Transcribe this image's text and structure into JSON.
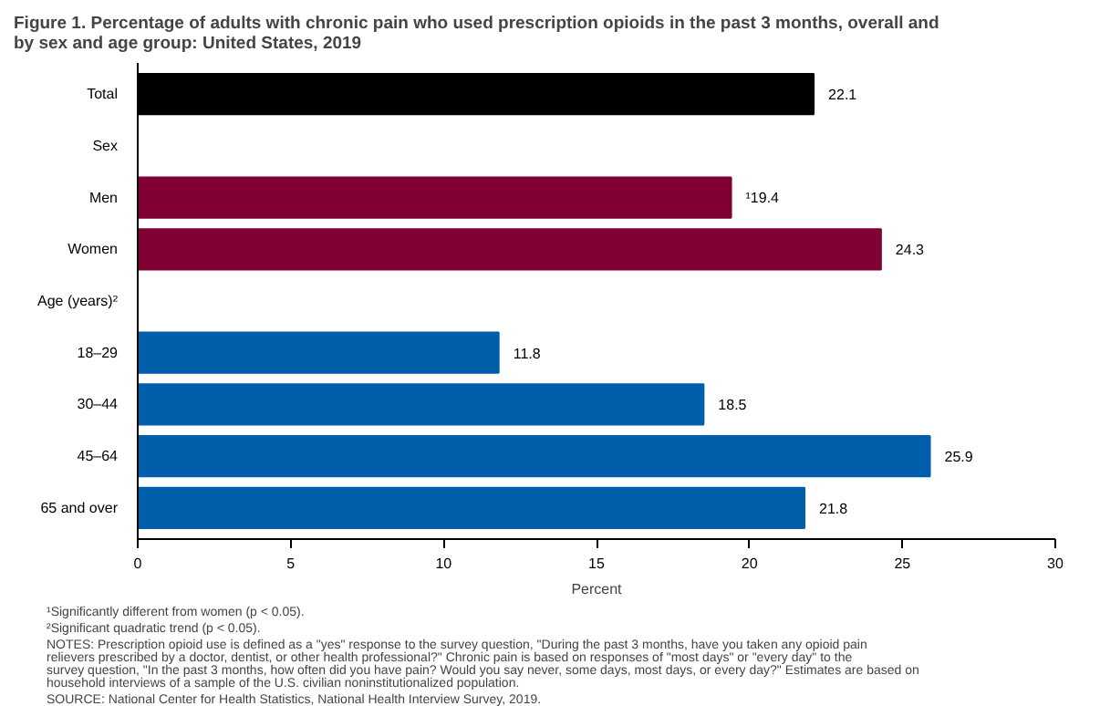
{
  "chart_data": {
    "type": "bar",
    "orientation": "horizontal",
    "title": "Figure 1. Percentage of adults with chronic pain who used prescription opioids in the past 3 months, overall and by sex and age group: United States, 2019",
    "xlabel": "Percent",
    "categories": [
      "Total",
      "Sex",
      "Men",
      "Women",
      "Age (years)²",
      "18–29",
      "30–44",
      "45–64",
      "65 and over"
    ],
    "values": [
      22.1,
      null,
      19.4,
      24.3,
      null,
      11.8,
      18.5,
      25.9,
      21.8
    ],
    "colors": [
      "#000000",
      null,
      "#800033",
      "#800033",
      null,
      "#005eaa",
      "#005eaa",
      "#005eaa",
      "#005eaa"
    ],
    "value_labels": [
      "22.1",
      null,
      "¹19.4",
      "24.3",
      null,
      "11.8",
      "18.5",
      "25.9",
      "21.8"
    ],
    "xlim": [
      0,
      30
    ],
    "xticks": [
      0,
      5,
      10,
      15,
      20,
      25,
      30
    ],
    "grid": false,
    "annotations": [
      "¹Significantly different from women (p < 0.05).",
      "²Significant quadratic trend (p < 0.05).",
      "NOTES: Prescription opioid use is defined as a \"yes\" response to the survey question, \"During the past 3 months, have you taken any opioid pain relievers prescribed by a doctor, dentist, or other health professional?\" Chronic pain is based on responses of \"most days\" or \"every day\" to the survey question, \"In the past 3 months, how often did you have pain? Would you say never, some days, most days, or every day?\" Estimates are based on household interviews of a sample of the U.S. civilian noninstitutionalized population.",
      "SOURCE: National Center for Health Statistics, National Health Interview Survey, 2019."
    ]
  }
}
